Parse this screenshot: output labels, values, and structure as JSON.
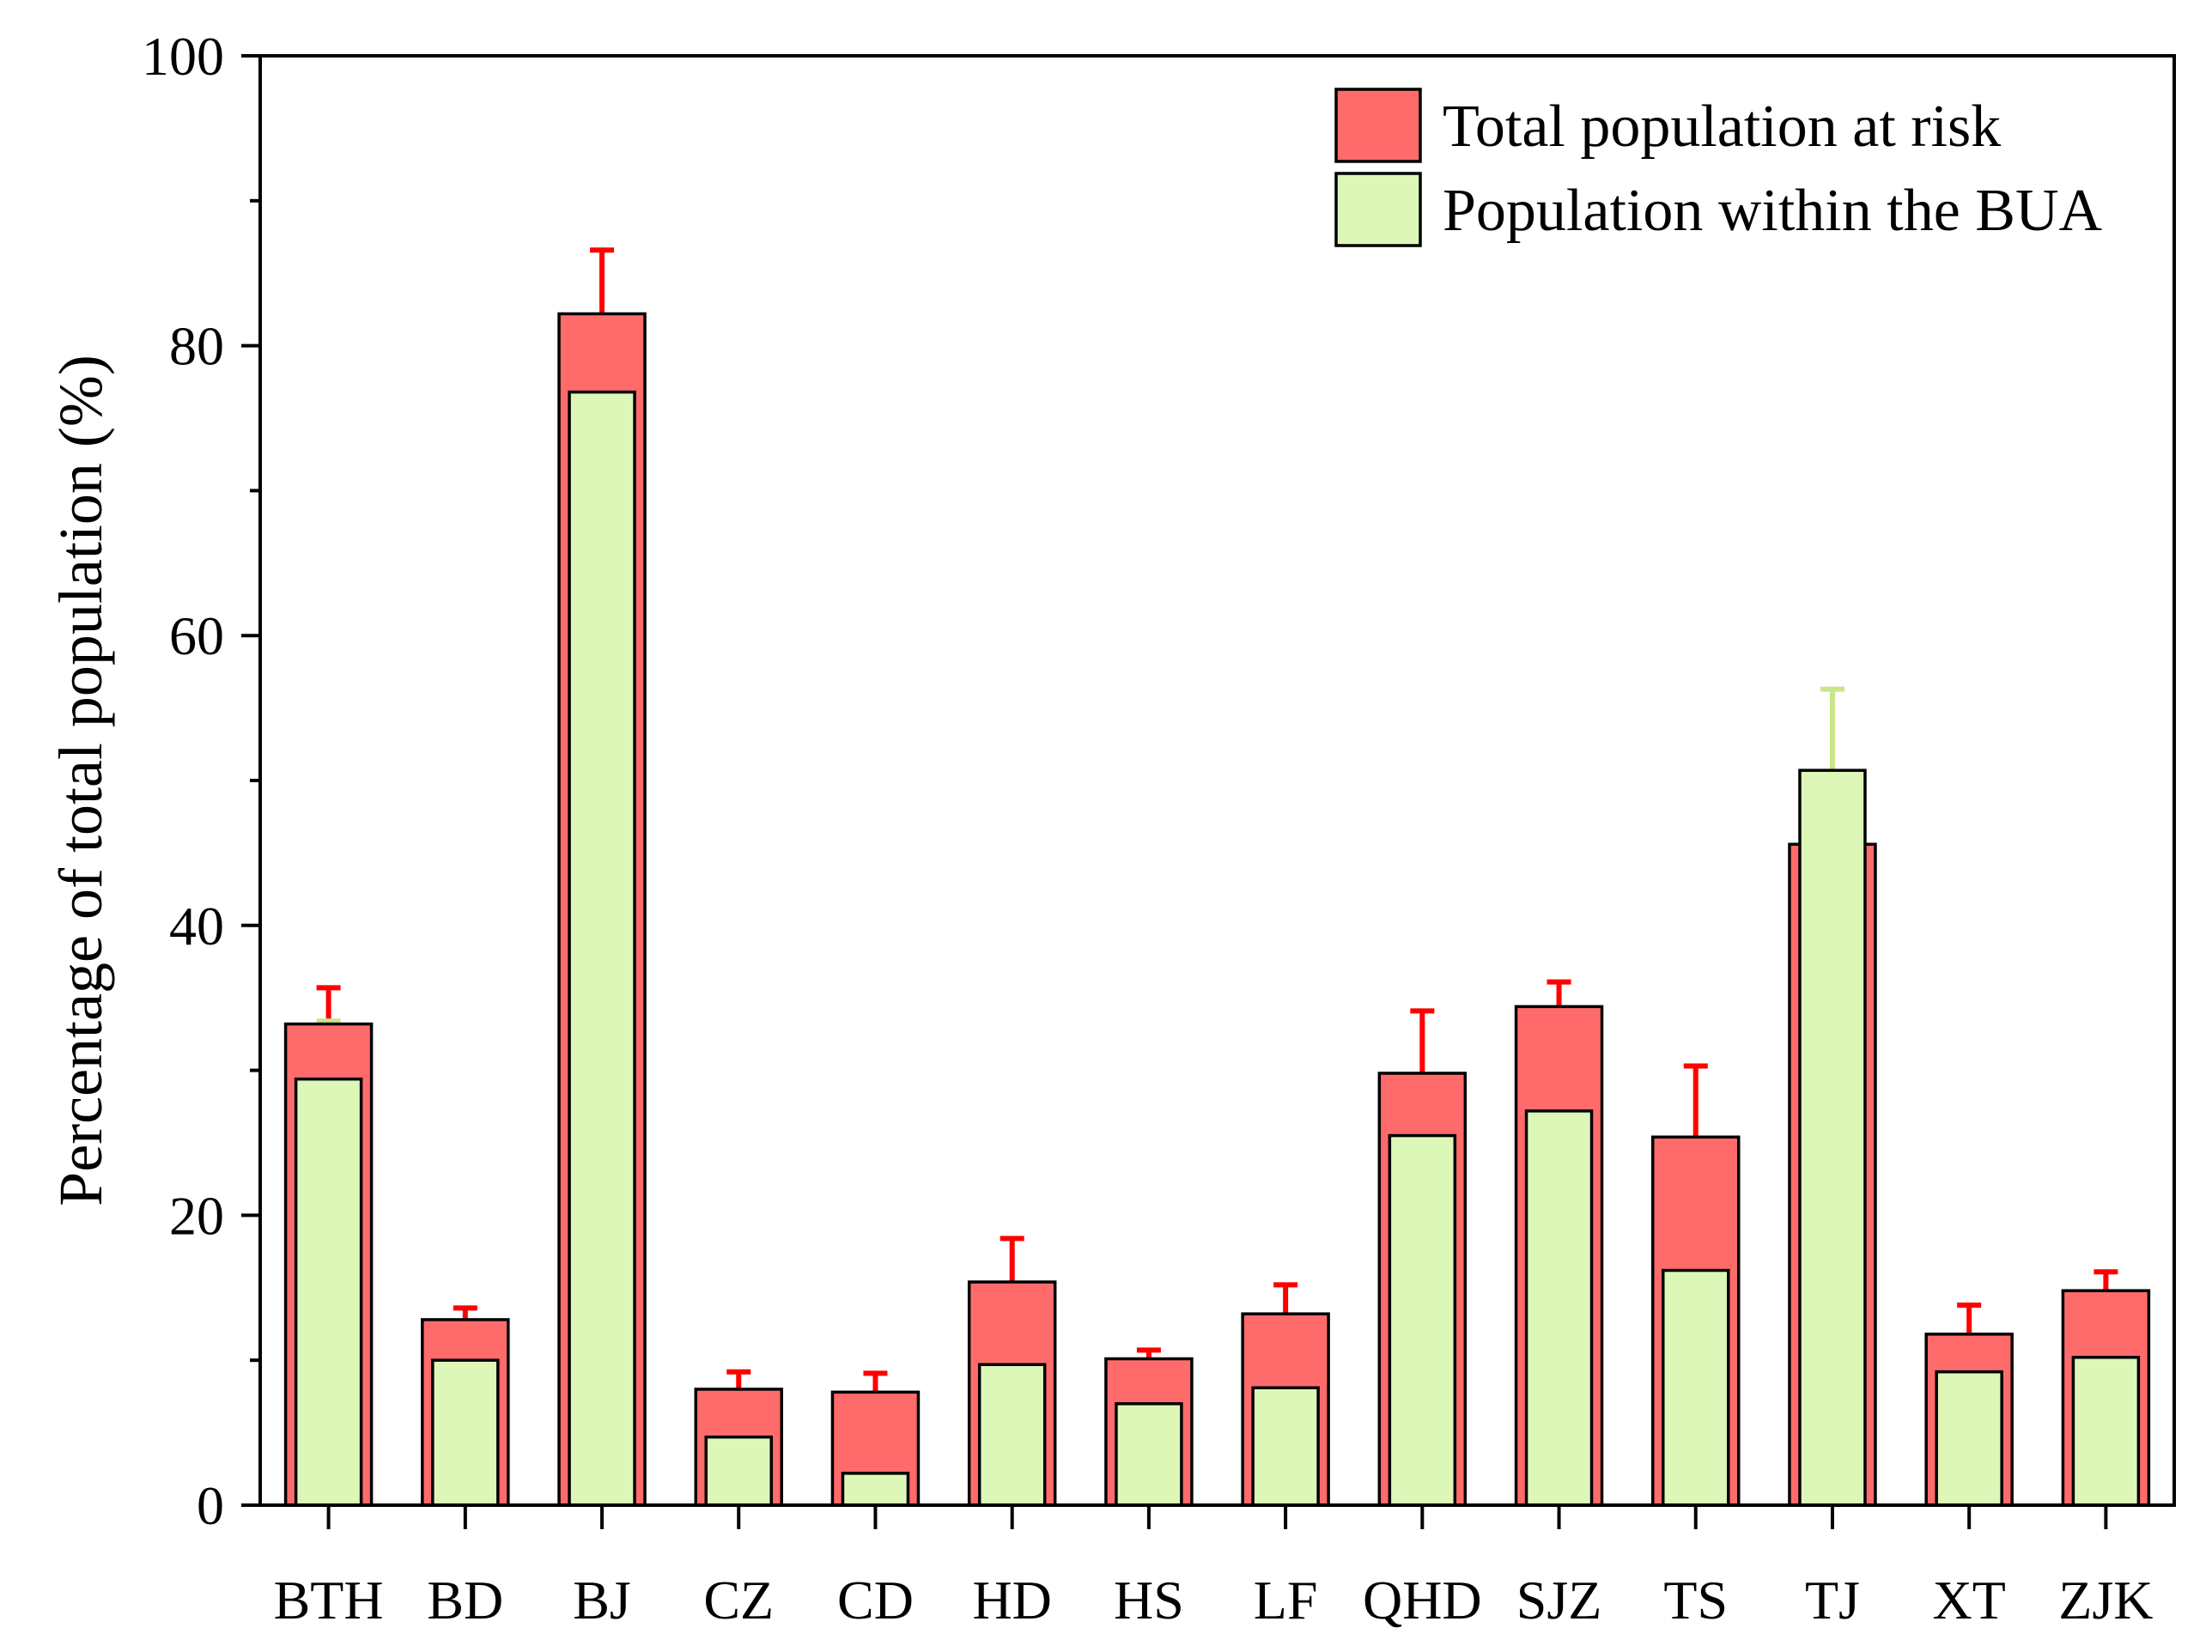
{
  "chart_data": {
    "type": "bar",
    "ylabel": "Percentage of total population (%)",
    "xlabel": "",
    "ylim": [
      0,
      100
    ],
    "yticks": [
      0,
      20,
      40,
      60,
      80,
      100
    ],
    "categories": [
      "BTH",
      "BD",
      "BJ",
      "CZ",
      "CD",
      "HD",
      "HS",
      "LF",
      "QHD",
      "SJZ",
      "TS",
      "TJ",
      "XT",
      "ZJK"
    ],
    "series": [
      {
        "name": "Total population at risk",
        "color": "#FF6B6B",
        "error_color": "#FF0000",
        "values": [
          33.2,
          12.8,
          82.2,
          8.0,
          7.8,
          15.4,
          10.1,
          13.2,
          29.8,
          34.4,
          25.4,
          45.6,
          11.8,
          14.8
        ],
        "errors": [
          2.5,
          0.8,
          4.4,
          1.2,
          1.3,
          3.0,
          0.6,
          2.0,
          4.3,
          1.7,
          4.9,
          0,
          2.0,
          1.3
        ]
      },
      {
        "name": "Population within the BUA",
        "color": "#DDF7B8",
        "error_color": "#C8E68A",
        "values": [
          29.4,
          10.0,
          76.8,
          4.7,
          2.2,
          9.7,
          7.0,
          8.1,
          25.5,
          27.2,
          16.2,
          50.7,
          9.2,
          10.2
        ],
        "errors": [
          4.0,
          0.4,
          3.7,
          1.2,
          0.6,
          0.7,
          0.5,
          1.5,
          1.5,
          1.3,
          3.3,
          5.6,
          0.5,
          1.4
        ]
      }
    ],
    "legend_position": "top-right"
  }
}
